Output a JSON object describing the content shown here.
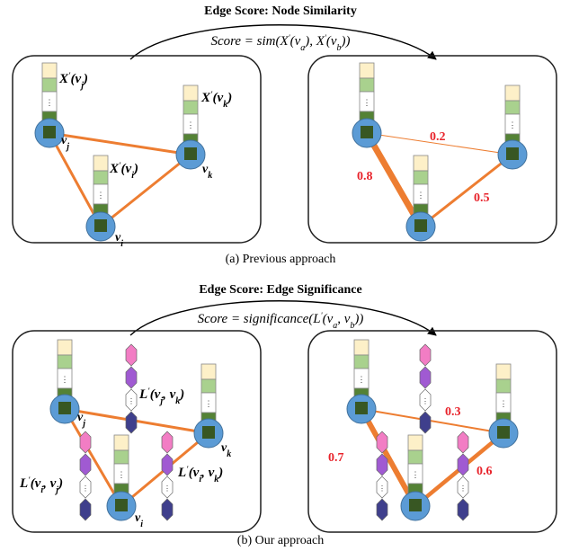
{
  "colors": {
    "edge": "#ed7d31",
    "node": "#5b9bd5",
    "node_stroke": "#41719c",
    "score_text": "#e8232b",
    "panel_stroke": "#1f1f1f",
    "vec_light": "#fdf0c8",
    "vec_mid": "#a9d18e",
    "vec_dark": "#385723",
    "vec_green": "#548235",
    "hex_pink": "#f27dc4",
    "hex_purple": "#a05ad2",
    "hex_dark": "#3f3f8c"
  },
  "panel_a": {
    "title": "Edge Score: Node Similarity",
    "formula": "Score = sim(X'(v_a), X'(v_b))",
    "caption": "(a) Previous approach",
    "left": {
      "labels": {
        "xj": "X'(v_j)",
        "xk": "X'(v_k)",
        "xi": "X'(v_i)"
      },
      "nodes": {
        "vj": "v_j",
        "vk": "v_k",
        "vi": "v_i"
      }
    },
    "right": {
      "scores": {
        "jk": "0.2",
        "ij": "0.8",
        "ik": "0.5"
      }
    }
  },
  "panel_b": {
    "title": "Edge Score: Edge Significance",
    "formula": "Score = significance(L'(v_a, v_b))",
    "caption": "(b) Our approach",
    "left": {
      "labels": {
        "ljk": "L'(v_j, v_k)",
        "lij": "L'(v_i, v_j)",
        "lik": "L'(v_i, v_k)"
      },
      "nodes": {
        "vj": "v_j",
        "vk": "v_k",
        "vi": "v_i"
      }
    },
    "right": {
      "scores": {
        "jk": "0.3",
        "ij": "0.7",
        "ik": "0.6"
      }
    }
  }
}
